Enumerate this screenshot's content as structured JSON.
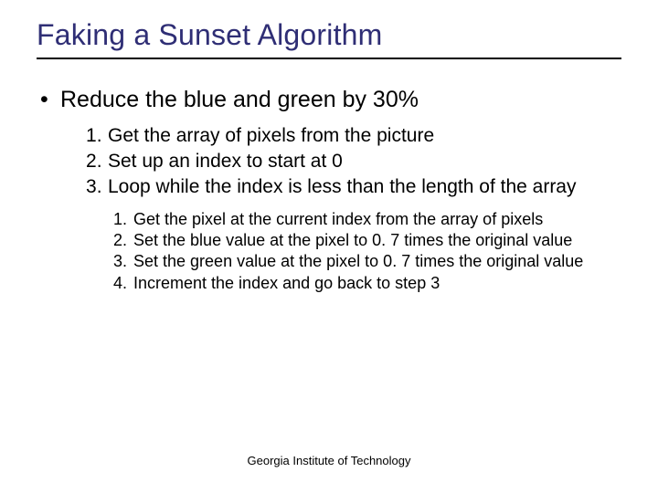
{
  "slide": {
    "title": "Faking a Sunset Algorithm",
    "title_color": "#2f2e75",
    "title_fontsize": 32,
    "underline_color": "#000000",
    "bullet": {
      "marker": "•",
      "text": "Reduce the blue and green by 30%",
      "fontsize": 25
    },
    "steps_level1": [
      "Get the array of pixels from the picture",
      "Set up an index to start at 0",
      "Loop while the index is less than the length of the array"
    ],
    "steps_level1_fontsize": 21,
    "steps_level2": [
      "Get the pixel at the current index from the array of pixels",
      "Set the blue value at the pixel to 0. 7 times the original value",
      "Set the green value at the pixel to 0. 7 times the original value",
      "Increment the index and go back to step 3"
    ],
    "steps_level2_fontsize": 18,
    "footer": "Georgia Institute of Technology",
    "footer_fontsize": 13,
    "background_color": "#ffffff",
    "text_color": "#000000"
  }
}
